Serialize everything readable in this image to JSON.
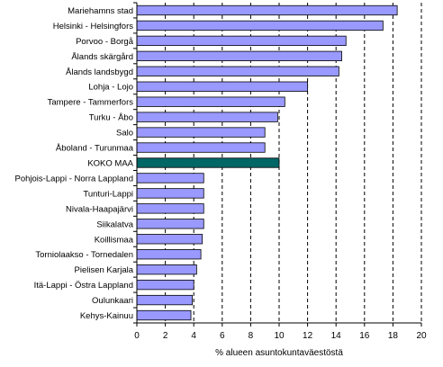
{
  "chart_data": {
    "type": "bar",
    "orientation": "horizontal",
    "categories": [
      "Mariehamns stad",
      "Helsinki - Helsingfors",
      "Porvoo - Borgå",
      "Ålands skärgård",
      "Ålands landsbygd",
      "Lohja - Lojo",
      "Tampere - Tammerfors",
      "Turku - Åbo",
      "Salo",
      "Åboland - Turunmaa",
      "KOKO MAA",
      "Pohjois-Lappi - Norra Lappland",
      "Tunturi-Lappi",
      "Nivala-Haapajärvi",
      "Siikalatva",
      "Koillismaa",
      "Torniolaakso - Tornedalen",
      "Pielisen Karjala",
      "Itä-Lappi - Östra Lappland",
      "Oulunkaari",
      "Kehys-Kainuu"
    ],
    "values": [
      18.3,
      17.3,
      14.7,
      14.4,
      14.2,
      12.0,
      10.4,
      9.9,
      9.0,
      9.0,
      10.0,
      4.7,
      4.7,
      4.7,
      4.7,
      4.6,
      4.5,
      4.2,
      4.0,
      3.9,
      3.8
    ],
    "highlight_category": "KOKO MAA",
    "xlabel": "% alueen asuntokuntaväestöstä",
    "ylabel": "",
    "title": "",
    "xlim": [
      0,
      20
    ],
    "xticks": [
      0,
      2,
      4,
      6,
      8,
      10,
      12,
      14,
      16,
      18,
      20
    ],
    "grid": "vertical dashed",
    "legend": "none",
    "colors": {
      "bar": "#9999ff",
      "highlight": "#006666",
      "bar_edge": "#000000",
      "grid": "#000000"
    }
  }
}
